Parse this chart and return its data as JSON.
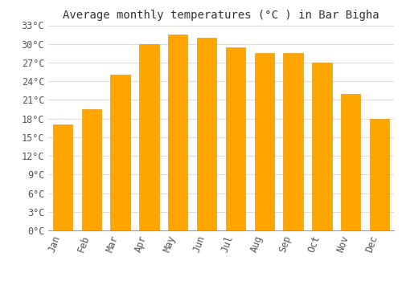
{
  "title": "Average monthly temperatures (°C ) in Bar Bigha",
  "months": [
    "Jan",
    "Feb",
    "Mar",
    "Apr",
    "May",
    "Jun",
    "Jul",
    "Aug",
    "Sep",
    "Oct",
    "Nov",
    "Dec"
  ],
  "values": [
    17,
    19.5,
    25,
    30,
    31.5,
    31,
    29.5,
    28.5,
    28.5,
    27,
    22,
    18
  ],
  "bar_color_top": "#FFA500",
  "bar_color_bottom": "#FFD060",
  "bar_edge_color": "#E09000",
  "ylim": [
    0,
    33
  ],
  "ytick_step": 3,
  "background_color": "#ffffff",
  "grid_color": "#dddddd",
  "title_fontsize": 10,
  "tick_fontsize": 8.5,
  "label_rotation": 70
}
